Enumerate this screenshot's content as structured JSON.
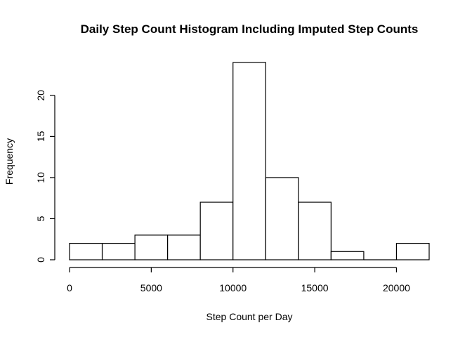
{
  "chart_data": {
    "type": "bar",
    "title": "Daily Step Count Histogram Including Imputed Step Counts",
    "xlabel": "Step Count per Day",
    "ylabel": "Frequency",
    "bins": [
      {
        "x0": 0,
        "x1": 2000,
        "count": 2
      },
      {
        "x0": 2000,
        "x1": 4000,
        "count": 2
      },
      {
        "x0": 4000,
        "x1": 6000,
        "count": 3
      },
      {
        "x0": 6000,
        "x1": 8000,
        "count": 3
      },
      {
        "x0": 8000,
        "x1": 10000,
        "count": 7
      },
      {
        "x0": 10000,
        "x1": 12000,
        "count": 24
      },
      {
        "x0": 12000,
        "x1": 14000,
        "count": 10
      },
      {
        "x0": 14000,
        "x1": 16000,
        "count": 7
      },
      {
        "x0": 16000,
        "x1": 18000,
        "count": 1
      },
      {
        "x0": 18000,
        "x1": 20000,
        "count": 0
      },
      {
        "x0": 20000,
        "x1": 22000,
        "count": 2
      }
    ],
    "xlim": [
      0,
      22000
    ],
    "ylim": [
      0,
      24
    ],
    "x_ticks": [
      "0",
      "5000",
      "10000",
      "15000",
      "20000"
    ],
    "y_ticks": [
      "0",
      "5",
      "10",
      "15",
      "20"
    ],
    "grid": false,
    "legend": "none"
  }
}
